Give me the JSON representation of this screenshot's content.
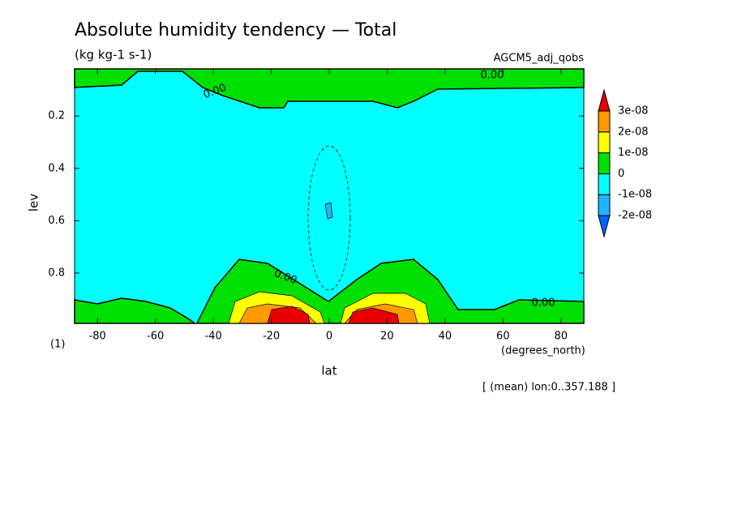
{
  "chart_data": {
    "type": "contour",
    "title": "Absolute humidity tendency — Total",
    "units": "(kg kg-1 s-1)",
    "dataset": "AGCM5_adj_qobs",
    "xlabel": "lat",
    "xunits": "(degrees_north)",
    "ylabel": "lev",
    "yunits": "(1)",
    "footer": "[ (mean) lon:0..357.188 ]",
    "xlim": [
      -87.9,
      87.9
    ],
    "xticks": [
      -80,
      -60,
      -40,
      -20,
      0,
      20,
      40,
      60,
      80
    ],
    "ylim": [
      0.992,
      0.02
    ],
    "yticks": [
      0.2,
      0.4,
      0.6,
      0.8
    ],
    "levels": [
      {
        "value": -2e-08,
        "label": "-2e-08"
      },
      {
        "value": -1e-08,
        "label": "-1e-08"
      },
      {
        "value": 0,
        "label": "0"
      },
      {
        "value": 1e-08,
        "label": "1e-08"
      },
      {
        "value": 2e-08,
        "label": "2e-08"
      },
      {
        "value": 3e-08,
        "label": "3e-08"
      }
    ],
    "colors": [
      "#0064ff",
      "#1eb4ff",
      "#00ffff",
      "#00e000",
      "#ffff00",
      "#ff9b00",
      "#e60000"
    ],
    "contour_labels": [
      {
        "value": 0,
        "label": "0.00"
      },
      {
        "value": 0,
        "label": "0.00"
      },
      {
        "value": 0,
        "label": "0.00"
      },
      {
        "value": 0,
        "label": "0.00"
      }
    ]
  }
}
